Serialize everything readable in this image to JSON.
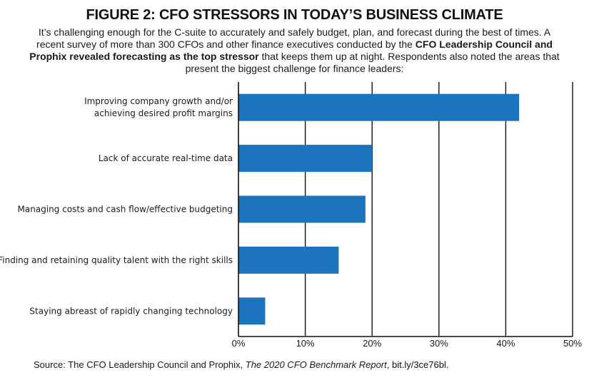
{
  "figure": {
    "title": "FIGURE 2: CFO STRESSORS IN TODAY’S BUSINESS CLIMATE",
    "intro_part1": "It’s challenging enough for the C-suite to accurately and safely budget, plan, and forecast during the best of times. A recent survey of more than 300 CFOs and other finance executives conducted by the ",
    "intro_bold": "CFO Leadership Council and Prophix revealed forecasting as the top stressor",
    "intro_part2": " that keeps them up at night. Respondents also noted the areas that present the biggest challenge for finance leaders:"
  },
  "source": {
    "prefix": "Source: The CFO Leadership Council and Prophix, ",
    "report": "The 2020 CFO Benchmark Report",
    "separator": ", ",
    "url": "bit.ly/3ce76bl",
    "suffix": "."
  },
  "colors": {
    "bar": "#1c75bc",
    "axis": "#111111"
  },
  "chart_data": {
    "type": "bar",
    "orientation": "horizontal",
    "categories": [
      [
        "Improving company growth and/or",
        "achieving desired profit margins"
      ],
      [
        "Lack of accurate real-time data"
      ],
      [
        "Managing costs and cash flow/effective budgeting"
      ],
      [
        "Finding and retaining quality talent with the right skills"
      ],
      [
        "Staying abreast of rapidly changing technology"
      ]
    ],
    "values": [
      42,
      20,
      19,
      15,
      4
    ],
    "xlim": [
      0,
      50
    ],
    "xticks": [
      0,
      10,
      20,
      30,
      40,
      50
    ],
    "tick_labels": [
      "0%",
      "10%",
      "20%",
      "30%",
      "40%",
      "50%"
    ],
    "grid": "vertical"
  }
}
